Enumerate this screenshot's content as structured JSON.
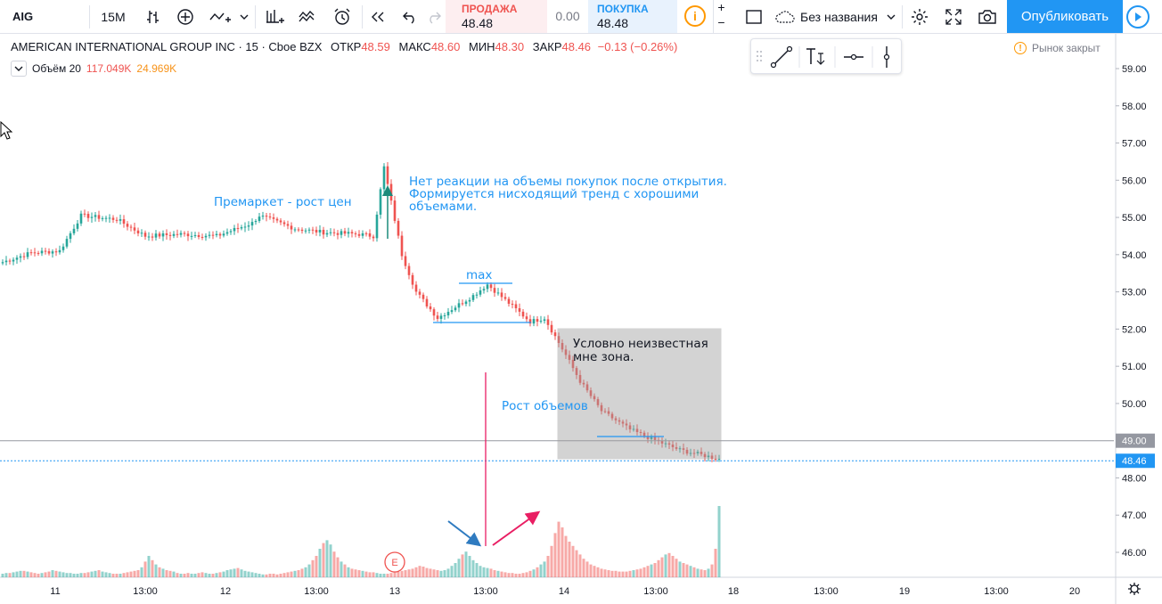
{
  "toolbar": {
    "symbol": "AIG",
    "interval": "15M",
    "sell_label": "ПРОДАЖА",
    "sell_price": "48.48",
    "spread": "0.00",
    "buy_label": "ПОКУПКА",
    "buy_price": "48.48",
    "info_icon": "i",
    "plus": "+",
    "minus": "−",
    "layout_name": "Без названия",
    "publish_label": "Опубликовать",
    "icons": [
      "bar-style-icon",
      "add-indicator-icon",
      "compare-icon",
      "indicators-icon",
      "templates-icon",
      "alert-icon",
      "replay-icon",
      "undo-icon",
      "redo-icon",
      "cloud-icon",
      "settings-icon",
      "fullscreen-icon",
      "camera-icon",
      "play-icon"
    ],
    "accent_color": "#2196f3"
  },
  "legend": {
    "name": "AMERICAN INTERNATIONAL GROUP INC · 15 · Cboe BZX",
    "open_label": "ОТКР",
    "open": "48.59",
    "high_label": "МАКС",
    "high": "48.60",
    "low_label": "МИН",
    "low": "48.30",
    "close_label": "ЗАКР",
    "close": "48.46",
    "change": "−0.13 (−0.26%)",
    "volume_label": "Объём 20",
    "volume_value": "117.049K",
    "volume_ma": "24.969K"
  },
  "market_status": "Рынок закрыт",
  "annotations": {
    "premarket": "Премаркет - рост цен",
    "no_reaction": [
      "Нет реакции на объемы покупок после открытия.",
      "Формируется нисходящий тренд с хорошими",
      "объемами."
    ],
    "max": "max",
    "unknown_zone": [
      "Условно неизвестная",
      "мне зона."
    ],
    "volume_growth": "Рост объемов",
    "earnings_marker": "E"
  },
  "chart_data": {
    "type": "candlestick",
    "price_axis_ticks": [
      "59.00",
      "58.00",
      "57.00",
      "56.00",
      "55.00",
      "54.00",
      "53.00",
      "52.00",
      "51.00",
      "50.00",
      "49.00",
      "48.00",
      "47.00",
      "46.00"
    ],
    "price_labels": {
      "level_line": "49.00",
      "last_price": "48.46"
    },
    "time_axis_ticks": [
      "11",
      "13:00",
      "12",
      "13:00",
      "13",
      "13:00",
      "14",
      "13:00",
      "18",
      "13:00",
      "19",
      "13:00",
      "20"
    ],
    "up_color": "#26a69a",
    "down_color": "#ef5350",
    "price_path": [
      [
        0,
        53.8
      ],
      [
        8,
        54.05
      ],
      [
        16,
        54.1
      ],
      [
        22,
        55.05
      ],
      [
        32,
        54.95
      ],
      [
        40,
        54.5
      ],
      [
        50,
        54.55
      ],
      [
        60,
        54.5
      ],
      [
        70,
        54.85
      ],
      [
        72,
        55.05
      ],
      [
        82,
        54.7
      ],
      [
        90,
        54.6
      ],
      [
        100,
        54.55
      ],
      [
        104,
        54.5
      ],
      [
        107,
        56.35
      ],
      [
        112,
        54.0
      ],
      [
        116,
        53.0
      ],
      [
        122,
        52.3
      ],
      [
        132,
        52.9
      ],
      [
        136,
        53.2
      ],
      [
        142,
        52.7
      ],
      [
        148,
        52.2
      ],
      [
        152,
        52.3
      ],
      [
        158,
        51.3
      ],
      [
        160,
        50.95
      ],
      [
        162,
        50.6
      ],
      [
        168,
        49.8
      ],
      [
        176,
        49.3
      ],
      [
        182,
        49.05
      ],
      [
        190,
        48.75
      ],
      [
        197,
        48.6
      ],
      [
        203,
        48.46
      ]
    ],
    "volume": [
      5,
      6,
      6,
      7,
      8,
      9,
      9,
      8,
      7,
      6,
      5,
      6,
      7,
      8,
      10,
      9,
      8,
      7,
      6,
      6,
      5,
      5,
      6,
      6,
      7,
      8,
      9,
      10,
      8,
      7,
      6,
      5,
      5,
      5,
      6,
      7,
      8,
      9,
      10,
      14,
      22,
      30,
      24,
      18,
      14,
      12,
      10,
      9,
      8,
      6,
      5,
      5,
      6,
      5,
      5,
      6,
      7,
      6,
      5,
      5,
      6,
      7,
      8,
      10,
      11,
      12,
      13,
      11,
      9,
      8,
      7,
      6,
      5,
      4,
      4,
      5,
      5,
      4,
      5,
      6,
      7,
      8,
      9,
      10,
      12,
      14,
      18,
      24,
      30,
      40,
      48,
      52,
      46,
      36,
      28,
      22,
      18,
      14,
      12,
      11,
      10,
      9,
      8,
      7,
      7,
      6,
      5,
      5,
      5,
      6,
      7,
      8,
      9,
      10,
      11,
      12,
      14,
      16,
      15,
      13,
      12,
      11,
      10,
      9,
      10,
      12,
      16,
      20,
      26,
      32,
      36,
      30,
      24,
      20,
      16,
      14,
      13,
      12,
      10,
      9,
      8,
      7,
      6,
      6,
      5,
      5,
      6,
      7,
      9,
      11,
      14,
      18,
      22,
      30,
      44,
      62,
      78,
      70,
      58,
      50,
      44,
      38,
      32,
      26,
      22,
      18,
      16,
      14,
      12,
      11,
      10,
      9,
      9,
      8,
      8,
      8,
      9,
      10,
      11,
      12,
      14,
      16,
      18,
      20,
      24,
      28,
      32,
      34,
      30,
      26,
      22,
      20,
      18,
      16,
      14,
      12,
      11,
      10,
      12,
      18,
      40,
      100
    ]
  }
}
